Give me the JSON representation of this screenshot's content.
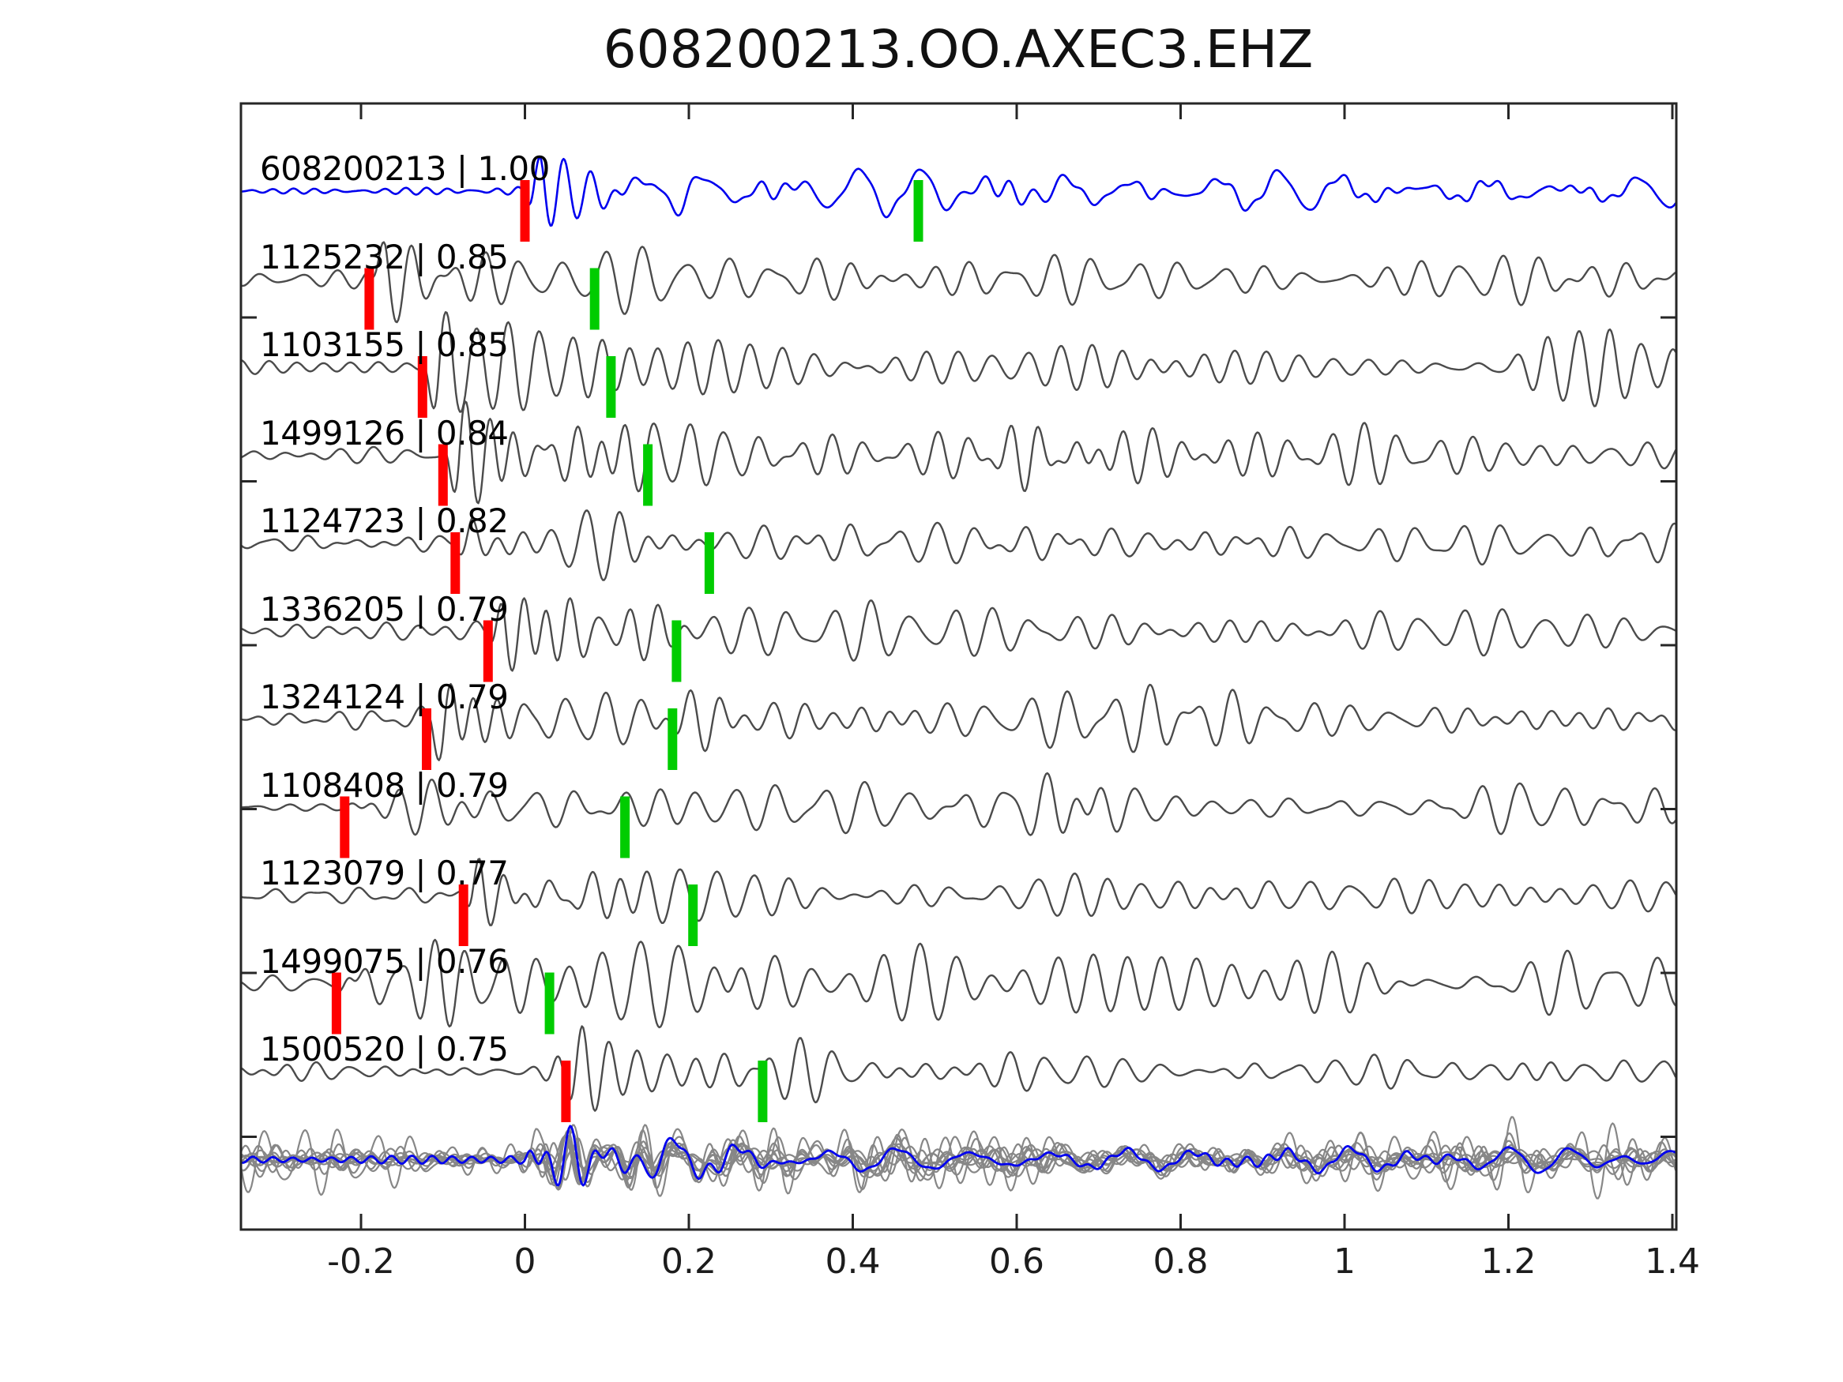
{
  "title": "608200213.OO.AXEC3.EHZ",
  "colors": {
    "template_blue": "#0000ee",
    "trace_gray": "#4b4b4b",
    "stack_gray": "#878787",
    "pick_red": "#ff0000",
    "pick_green": "#00cc00",
    "frame": "#262626",
    "text": "#000000"
  },
  "chart_data": {
    "type": "line",
    "title": "608200213.OO.AXEC3.EHZ",
    "xlabel": "",
    "ylabel": "",
    "xlim": [
      -0.347,
      1.405
    ],
    "grid": false,
    "legend": "none",
    "x_ticks": [
      -0.2,
      0,
      0.2,
      0.4,
      0.6,
      0.8,
      1,
      1.2,
      1.4
    ],
    "x_tick_labels": [
      "-0.2",
      "0",
      "0.2",
      "0.4",
      "0.6",
      "0.8",
      "1",
      "1.2",
      "1.4"
    ],
    "traces": [
      {
        "id": "608200213",
        "correlation": "1.00",
        "label": "608200213 | 1.00",
        "color": "#0000ee",
        "template_pick_t": 0.0,
        "detection_pick_t": 0.48,
        "synth": {
          "seed": 11,
          "noise": 4.5,
          "noise_f": 36,
          "A": 86,
          "f": 30,
          "tau": 0.1,
          "C": 24,
          "cf": 13,
          "packets": [
            {
              "t": 0.62,
              "a": 15,
              "w": 0.1
            }
          ]
        }
      },
      {
        "id": "1125232",
        "correlation": "0.85",
        "label": "1125232 | 0.85",
        "color": "#4b4b4b",
        "template_pick_t": -0.19,
        "detection_pick_t": 0.085,
        "synth": {
          "seed": 22,
          "noise": 9,
          "noise_f": 26,
          "A": 100,
          "f": 29,
          "tau": 0.13,
          "C": 30,
          "cf": 25
        }
      },
      {
        "id": "1103155",
        "correlation": "0.85",
        "label": "1103155 | 0.85",
        "color": "#4b4b4b",
        "template_pick_t": -0.125,
        "detection_pick_t": 0.105,
        "synth": {
          "seed": 33,
          "noise": 9,
          "noise_f": 26,
          "A": 100,
          "f": 30,
          "tau": 0.13,
          "C": 28,
          "cf": 25,
          "packets": [
            {
              "t": 1.29,
              "a": 30,
              "w": 0.055
            }
          ]
        }
      },
      {
        "id": "1499126",
        "correlation": "0.84",
        "label": "1499126 | 0.84",
        "color": "#4b4b4b",
        "template_pick_t": -0.1,
        "detection_pick_t": 0.15,
        "synth": {
          "seed": 44,
          "noise": 10,
          "noise_f": 26,
          "A": 107,
          "f": 30,
          "tau": 0.14,
          "C": 35,
          "cf": 24,
          "packets": [
            {
              "t": 0.635,
              "a": 36,
              "w": 0.045
            }
          ]
        }
      },
      {
        "id": "1124723",
        "correlation": "0.82",
        "label": "1124723 | 0.82",
        "color": "#4b4b4b",
        "template_pick_t": -0.085,
        "detection_pick_t": 0.225,
        "synth": {
          "seed": 55,
          "noise": 9,
          "noise_f": 26,
          "A": 95,
          "f": 31,
          "tau": 0.12,
          "C": 26,
          "cf": 25
        }
      },
      {
        "id": "1336205",
        "correlation": "0.79",
        "label": "1336205 | 0.79",
        "color": "#4b4b4b",
        "template_pick_t": -0.045,
        "detection_pick_t": 0.185,
        "synth": {
          "seed": 66,
          "noise": 9,
          "noise_f": 26,
          "A": 112,
          "f": 29,
          "tau": 0.13,
          "C": 30,
          "cf": 24
        }
      },
      {
        "id": "1324124",
        "correlation": "0.79",
        "label": "1324124 | 0.79",
        "color": "#4b4b4b",
        "template_pick_t": -0.12,
        "detection_pick_t": 0.18,
        "synth": {
          "seed": 77,
          "noise": 10,
          "noise_f": 26,
          "A": 108,
          "f": 30,
          "tau": 0.15,
          "C": 33,
          "cf": 24
        }
      },
      {
        "id": "1108408",
        "correlation": "0.79",
        "label": "1108408 | 0.79",
        "color": "#4b4b4b",
        "template_pick_t": -0.22,
        "detection_pick_t": 0.122,
        "synth": {
          "seed": 88,
          "noise": 9,
          "noise_f": 26,
          "A": 88,
          "f": 30,
          "tau": 0.14,
          "C": 30,
          "cf": 25,
          "packets": [
            {
              "t": 0.66,
              "a": 30,
              "w": 0.06
            }
          ]
        }
      },
      {
        "id": "1123079",
        "correlation": "0.77",
        "label": "1123079 | 0.77",
        "color": "#4b4b4b",
        "template_pick_t": -0.075,
        "detection_pick_t": 0.205,
        "synth": {
          "seed": 99,
          "noise": 8,
          "noise_f": 26,
          "A": 102,
          "f": 30,
          "tau": 0.13,
          "C": 26,
          "cf": 25
        }
      },
      {
        "id": "1499075",
        "correlation": "0.76",
        "label": "1499075 | 0.76",
        "color": "#4b4b4b",
        "template_pick_t": -0.23,
        "detection_pick_t": 0.03,
        "synth": {
          "seed": 110,
          "noise": 23,
          "noise_f": 24,
          "A": 100,
          "f": 29,
          "tau": 0.16,
          "C": 38,
          "cf": 22
        }
      },
      {
        "id": "1500520",
        "correlation": "0.75",
        "label": "1500520 | 0.75",
        "color": "#4b4b4b",
        "template_pick_t": 0.05,
        "detection_pick_t": 0.29,
        "synth": {
          "seed": 121,
          "noise": 8,
          "noise_f": 26,
          "A": 58,
          "f": 31,
          "tau": 0.3,
          "C": 18,
          "cf": 24,
          "packets": [
            {
              "t": 0.058,
              "a": 40,
              "w": 0.022
            }
          ]
        }
      }
    ],
    "stack": {
      "description": "aligned overlay of all detections (gray) with template (blue)",
      "gray_color": "#878787",
      "template_color": "#0000ee",
      "align_t": 0,
      "template": {
        "seed": 601,
        "noise": 4.5,
        "noise_f": 36,
        "A": 60,
        "f": 30,
        "tau": 0.12,
        "C": 22,
        "cf": 14
      },
      "members": [
        {
          "seed": 501,
          "noise": 10,
          "A": 62,
          "C": 22
        },
        {
          "seed": 502,
          "noise": 14,
          "A": 70,
          "C": 26
        },
        {
          "seed": 503,
          "noise": 9,
          "A": 55,
          "C": 20
        },
        {
          "seed": 504,
          "noise": 26,
          "A": 66,
          "C": 30
        },
        {
          "seed": 505,
          "noise": 12,
          "A": 58,
          "C": 22
        },
        {
          "seed": 506,
          "noise": 8,
          "A": 72,
          "C": 24
        },
        {
          "seed": 507,
          "noise": 18,
          "A": 60,
          "C": 28
        },
        {
          "seed": 508,
          "noise": 11,
          "A": 64,
          "C": 21
        },
        {
          "seed": 509,
          "noise": 30,
          "A": 68,
          "C": 26
        },
        {
          "seed": 510,
          "noise": 13,
          "A": 57,
          "C": 23
        }
      ]
    }
  }
}
